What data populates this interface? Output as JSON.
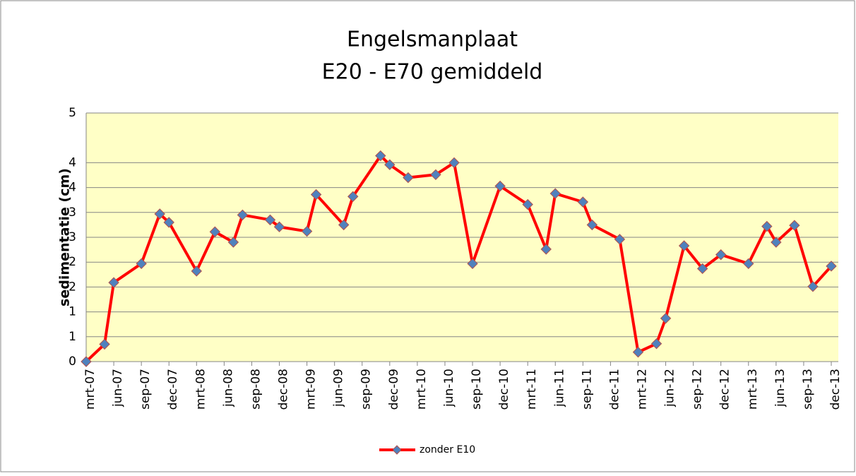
{
  "chart_data": {
    "type": "line",
    "title": [
      "Engelsmanplaat",
      "E20 - E70 gemiddeld"
    ],
    "y_label": "sedimentatie (cm)",
    "x": [
      "2007-03",
      "2007-05",
      "2007-06",
      "2007-09",
      "2007-11",
      "2007-12",
      "2008-03",
      "2008-05",
      "2008-07",
      "2008-08",
      "2008-11",
      "2008-12",
      "2009-03",
      "2009-04",
      "2009-07",
      "2009-08",
      "2009-11",
      "2009-12",
      "2010-02",
      "2010-05",
      "2010-07",
      "2010-09",
      "2010-12",
      "2011-03",
      "2011-05",
      "2011-06",
      "2011-09",
      "2011-10",
      "2012-01",
      "2012-03",
      "2012-05",
      "2012-06",
      "2012-08",
      "2012-10",
      "2012-12",
      "2013-03",
      "2013-05",
      "2013-06",
      "2013-08",
      "2013-10",
      "2013-12"
    ],
    "series": [
      {
        "name": "zonder E10",
        "color": "#ff0000",
        "marker_color": "#4f81bd",
        "values": [
          0.0,
          0.35,
          1.59,
          1.97,
          2.97,
          2.8,
          1.82,
          2.61,
          2.4,
          2.95,
          2.85,
          2.71,
          2.62,
          3.36,
          2.75,
          3.32,
          4.14,
          3.96,
          3.7,
          3.76,
          4.0,
          1.97,
          3.53,
          3.16,
          2.26,
          3.38,
          3.21,
          2.75,
          2.46,
          0.19,
          0.36,
          0.87,
          2.33,
          1.87,
          2.15,
          1.97,
          2.72,
          2.4,
          2.74,
          1.51,
          1.92
        ]
      }
    ],
    "xlim": [
      "2007-03",
      "2013-12"
    ],
    "xticks": [
      {
        "value": "2007-03",
        "label": "mrt-07"
      },
      {
        "value": "2007-06",
        "label": "jun-07"
      },
      {
        "value": "2007-09",
        "label": "sep-07"
      },
      {
        "value": "2007-12",
        "label": "dec-07"
      },
      {
        "value": "2008-03",
        "label": "mrt-08"
      },
      {
        "value": "2008-06",
        "label": "jun-08"
      },
      {
        "value": "2008-09",
        "label": "sep-08"
      },
      {
        "value": "2008-12",
        "label": "dec-08"
      },
      {
        "value": "2009-03",
        "label": "mrt-09"
      },
      {
        "value": "2009-06",
        "label": "jun-09"
      },
      {
        "value": "2009-09",
        "label": "sep-09"
      },
      {
        "value": "2009-12",
        "label": "dec-09"
      },
      {
        "value": "2010-03",
        "label": "mrt-10"
      },
      {
        "value": "2010-06",
        "label": "jun-10"
      },
      {
        "value": "2010-09",
        "label": "sep-10"
      },
      {
        "value": "2010-12",
        "label": "dec-10"
      },
      {
        "value": "2011-03",
        "label": "mrt-11"
      },
      {
        "value": "2011-06",
        "label": "jun-11"
      },
      {
        "value": "2011-09",
        "label": "sep-11"
      },
      {
        "value": "2011-12",
        "label": "dec-11"
      },
      {
        "value": "2012-03",
        "label": "mrt-12"
      },
      {
        "value": "2012-06",
        "label": "jun-12"
      },
      {
        "value": "2012-09",
        "label": "sep-12"
      },
      {
        "value": "2012-12",
        "label": "dec-12"
      },
      {
        "value": "2013-03",
        "label": "mrt-13"
      },
      {
        "value": "2013-06",
        "label": "jun-13"
      },
      {
        "value": "2013-09",
        "label": "sep-13"
      },
      {
        "value": "2013-12",
        "label": "dec-13"
      }
    ],
    "ylim": [
      0,
      5
    ],
    "yticks": [
      0,
      {
        "value": 0.5,
        "label": "1"
      },
      1,
      {
        "value": 1.5,
        "label": "2"
      },
      2,
      {
        "value": 2.5,
        "label": "3"
      },
      3,
      {
        "value": 3.5,
        "label": "4"
      },
      4,
      5
    ],
    "grid": true,
    "legend": "bottom",
    "plot_background": "#ffffc6"
  }
}
